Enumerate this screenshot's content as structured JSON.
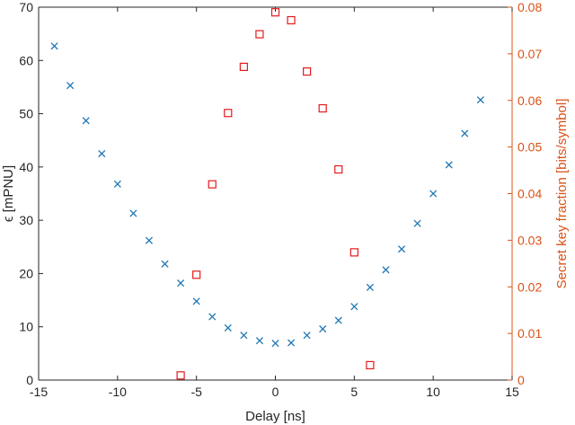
{
  "chart_data": {
    "type": "scatter",
    "xlabel": "Delay [ns]",
    "ylabel_left": "ϵ [mPNU]",
    "ylabel_right": "Secret key fraction [bits/symbol]",
    "xlim": [
      -15,
      15
    ],
    "ylim_left": [
      0,
      70
    ],
    "ylim_right": [
      0,
      0.08
    ],
    "x_ticks": [
      -15,
      -10,
      -5,
      0,
      5,
      10,
      15
    ],
    "x_tick_labels": [
      "-15",
      "-10",
      "-5",
      "0",
      "5",
      "10",
      "15"
    ],
    "y_left_ticks": [
      0,
      10,
      20,
      30,
      40,
      50,
      60,
      70
    ],
    "y_left_tick_labels": [
      "0",
      "10",
      "20",
      "30",
      "40",
      "50",
      "60",
      "70"
    ],
    "y_right_ticks": [
      0,
      0.01,
      0.02,
      0.03,
      0.04,
      0.05,
      0.06,
      0.07,
      0.08
    ],
    "y_right_tick_labels": [
      "0",
      "0.01",
      "0.02",
      "0.03",
      "0.04",
      "0.05",
      "0.06",
      "0.07",
      "0.08"
    ],
    "grid": false,
    "series": [
      {
        "axis": "left",
        "marker": "x",
        "color": "#1f77b4",
        "x": [
          -14,
          -13,
          -12,
          -11,
          -10,
          -9,
          -8,
          -7,
          -6,
          -5,
          -4,
          -3,
          -2,
          -1,
          0,
          1,
          2,
          3,
          4,
          5,
          6,
          7,
          8,
          9,
          10,
          11,
          12,
          13
        ],
        "y": [
          62.7,
          55.3,
          48.7,
          42.5,
          36.8,
          31.3,
          26.2,
          21.8,
          18.2,
          14.8,
          11.9,
          9.8,
          8.4,
          7.4,
          6.9,
          7.0,
          8.4,
          9.6,
          11.2,
          13.8,
          17.4,
          20.7,
          24.6,
          29.4,
          35.0,
          40.4,
          46.3,
          52.6
        ]
      },
      {
        "axis": "right",
        "marker": "square",
        "color": "#e41a1c",
        "x": [
          -6,
          -5,
          -4,
          -3,
          -2,
          -1,
          0,
          1,
          2,
          3,
          4,
          5,
          6
        ],
        "y": [
          0.001,
          0.0226,
          0.042,
          0.0573,
          0.0672,
          0.0742,
          0.0789,
          0.0772,
          0.0662,
          0.0583,
          0.0452,
          0.0274,
          0.0032
        ]
      }
    ],
    "colors": {
      "left_axis": "#262626",
      "right_axis": "#d95319"
    }
  }
}
